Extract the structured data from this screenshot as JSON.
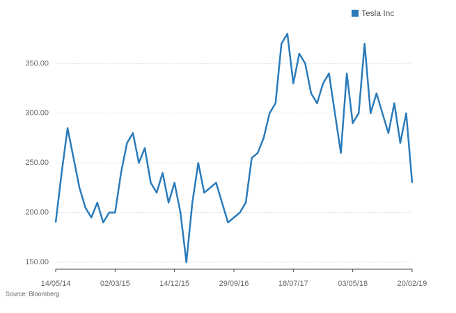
{
  "chart_data": {
    "type": "line",
    "x": [
      "14/05/14",
      "12/06/14",
      "11/07/14",
      "09/08/14",
      "07/09/14",
      "06/10/14",
      "04/11/14",
      "03/12/14",
      "01/01/15",
      "30/01/15",
      "02/03/15",
      "31/03/15",
      "28/04/15",
      "27/05/15",
      "25/06/15",
      "23/07/15",
      "21/08/15",
      "19/09/15",
      "17/10/15",
      "15/11/15",
      "14/12/15",
      "12/01/16",
      "10/02/16",
      "10/03/16",
      "08/04/16",
      "07/05/16",
      "05/06/16",
      "04/07/16",
      "02/08/16",
      "31/08/16",
      "29/09/16",
      "28/10/16",
      "26/11/16",
      "25/12/16",
      "23/01/17",
      "21/02/17",
      "22/03/17",
      "20/04/17",
      "19/05/17",
      "17/06/17",
      "18/07/17",
      "16/08/17",
      "14/09/17",
      "13/10/17",
      "11/11/17",
      "10/12/17",
      "08/01/18",
      "06/02/18",
      "07/03/18",
      "05/04/18",
      "03/05/18",
      "01/06/18",
      "30/06/18",
      "29/07/18",
      "27/08/18",
      "25/09/18",
      "24/10/18",
      "22/11/18",
      "21/12/18",
      "20/01/19",
      "20/02/19"
    ],
    "series": [
      {
        "name": "Tesla Inc",
        "color": "#2b7bba",
        "values": [
          190,
          240,
          285,
          255,
          225,
          205,
          195,
          210,
          190,
          200,
          200,
          240,
          270,
          280,
          250,
          265,
          230,
          220,
          240,
          210,
          230,
          200,
          150,
          210,
          250,
          220,
          225,
          230,
          210,
          190,
          195,
          200,
          210,
          255,
          260,
          275,
          300,
          310,
          370,
          380,
          330,
          360,
          350,
          320,
          310,
          330,
          340,
          300,
          260,
          340,
          290,
          300,
          370,
          300,
          320,
          300,
          280,
          310,
          270,
          300,
          230
        ]
      }
    ],
    "xticks": [
      "14/05/14",
      "02/03/15",
      "14/12/15",
      "29/09/16",
      "18/07/17",
      "03/05/18",
      "20/02/19"
    ],
    "ylim": [
      143,
      393
    ],
    "yticks": [
      {
        "value": 150,
        "label": "150.00"
      },
      {
        "value": 200,
        "label": "200.00"
      },
      {
        "value": 250,
        "label": "250.00"
      },
      {
        "value": 300,
        "label": "300.00"
      },
      {
        "value": 350,
        "label": "350.00"
      }
    ],
    "grid": true,
    "source": "Source: Bloomberg"
  }
}
